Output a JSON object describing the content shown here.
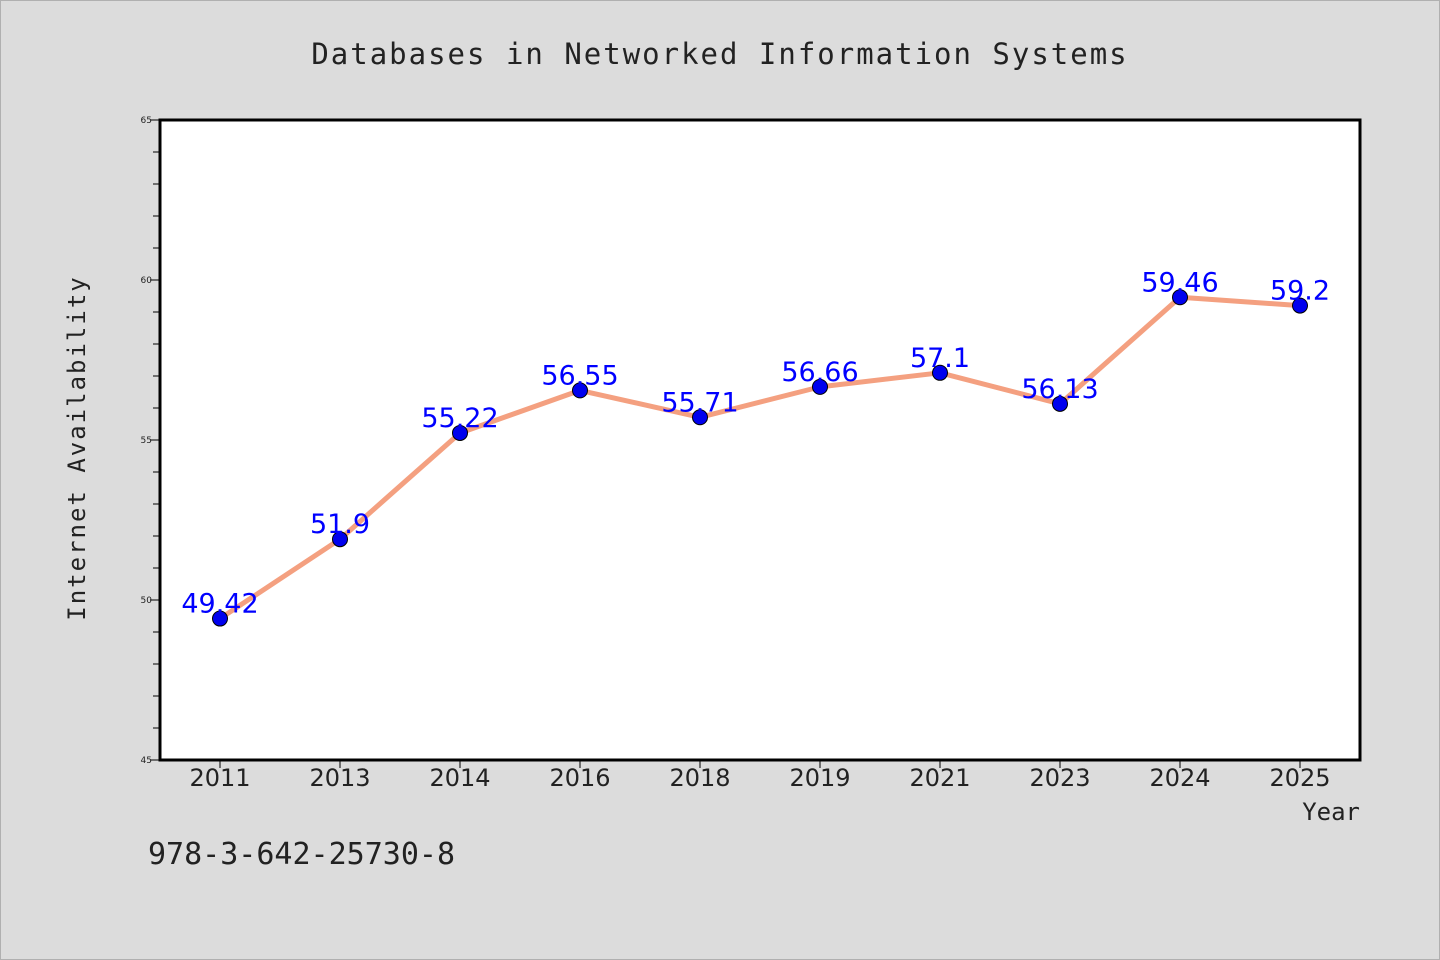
{
  "chart_data": {
    "type": "line",
    "title": "Databases in Networked Information Systems",
    "xlabel": "Year",
    "ylabel": "Internet Availability",
    "categories": [
      "2011",
      "2013",
      "2014",
      "2016",
      "2018",
      "2019",
      "2021",
      "2023",
      "2024",
      "2025"
    ],
    "series": [
      {
        "values": [
          49.42,
          51.9,
          55.22,
          56.55,
          55.71,
          56.66,
          57.1,
          56.13,
          59.46,
          59.2
        ],
        "labels": [
          "49.42",
          "51.9",
          "55.22",
          "56.55",
          "55.71",
          "56.66",
          "57.1",
          "56.13",
          "59.46",
          "59.2"
        ],
        "line_color": "#f4a080",
        "marker_color": "#0000ee"
      }
    ],
    "ylim": [
      45,
      65
    ],
    "yticks": [
      "45",
      "50",
      "55",
      "60",
      "65"
    ],
    "grid": false,
    "legend": "none",
    "label_color": "#0000ff"
  },
  "footer": {
    "isbn": "978-3-642-25730-8"
  }
}
